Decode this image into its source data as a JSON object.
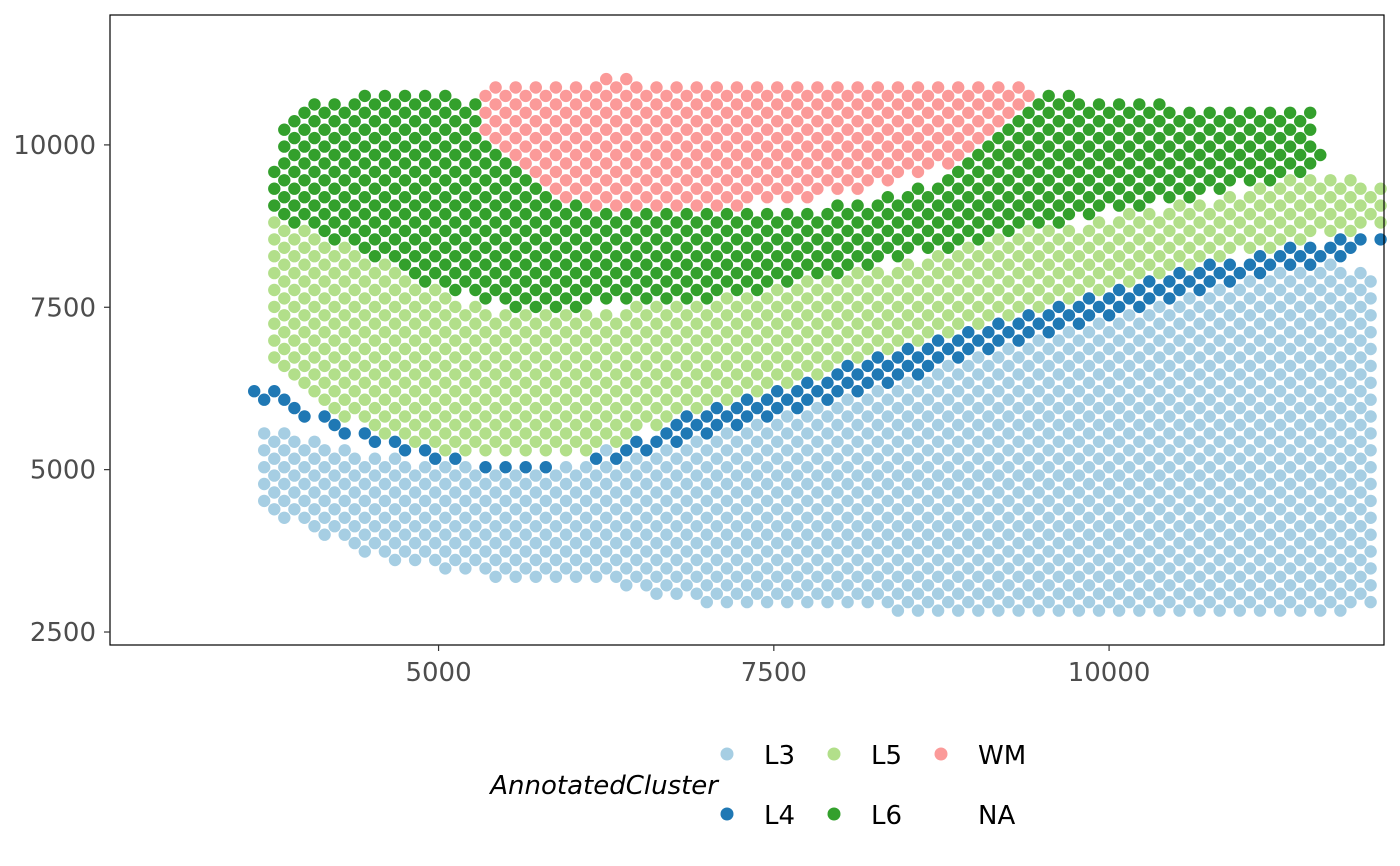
{
  "chart_data": {
    "type": "scatter",
    "title": "",
    "xlabel": "",
    "ylabel": "",
    "xlim": [
      2550,
      12050
    ],
    "ylim": [
      2300,
      12000
    ],
    "x_ticks": [
      5000,
      7500,
      10000
    ],
    "y_ticks": [
      2500,
      5000,
      7500,
      10000
    ],
    "x_tick_labels": [
      "5000",
      "7500",
      "10000"
    ],
    "y_tick_labels": [
      "2500",
      "5000",
      "7500",
      "10000"
    ],
    "grid": false,
    "legend": {
      "title": "AnnotatedCluster",
      "position": "bottom",
      "entries": [
        {
          "label": "L3",
          "color": "#a6cee3"
        },
        {
          "label": "L4",
          "color": "#1f78b4"
        },
        {
          "label": "L5",
          "color": "#b2df8a"
        },
        {
          "label": "L6",
          "color": "#33a02c"
        },
        {
          "label": "WM",
          "color": "#fb9a99"
        },
        {
          "label": "NA",
          "color": null
        }
      ]
    },
    "series": [
      {
        "name": "L3",
        "color": "#a6cee3",
        "region_description": "lower band; top edge rises from (3750,5650) to (11800,8250), bottom edge from (3750,4400) to (12000,2800)",
        "spot_spacing": 150,
        "polygon_x": [
          3650,
          4300,
          4900,
          5500,
          6000,
          6500,
          7000,
          7500,
          8000,
          8500,
          9000,
          9500,
          10000,
          10500,
          11000,
          11500,
          11950,
          12000,
          12000,
          11950,
          11500,
          11000,
          10500,
          10000,
          9500,
          9000,
          8500,
          8000,
          7500,
          7000,
          6500,
          6000,
          5500,
          5000,
          4500,
          4000,
          3650
        ],
        "polygon_y": [
          5700,
          5350,
          5100,
          5000,
          5150,
          5500,
          5850,
          6200,
          6550,
          6850,
          7100,
          7350,
          7650,
          7950,
          8200,
          8250,
          8000,
          7000,
          5300,
          2850,
          2750,
          2750,
          2750,
          2750,
          2800,
          2750,
          2800,
          2900,
          2900,
          2900,
          3100,
          3350,
          3300,
          3450,
          3650,
          4100,
          4450
        ]
      },
      {
        "name": "L4",
        "color": "#1f78b4",
        "region_description": "thin band from (3650,6300) dipping to (5200,5050) then rising to (12050,8700)",
        "spot_spacing": 150,
        "polygon_x": [
          3600,
          3900,
          4300,
          4800,
          5300,
          5800,
          6300,
          6800,
          7300,
          7800,
          8300,
          8800,
          9300,
          9800,
          10300,
          10800,
          11300,
          11800,
          12050,
          12050,
          11800,
          11300,
          10800,
          10300,
          9800,
          9300,
          8800,
          8300,
          7800,
          7300,
          6800,
          6300,
          5800,
          5300,
          4800,
          4300,
          3900,
          3600
        ],
        "polygon_y": [
          6100,
          5850,
          5550,
          5200,
          5000,
          5000,
          5300,
          5800,
          6150,
          6450,
          6750,
          7050,
          7350,
          7650,
          7950,
          8200,
          8400,
          8600,
          8700,
          8550,
          8250,
          8050,
          7800,
          7500,
          7200,
          6900,
          6600,
          6300,
          6000,
          5700,
          5400,
          5150,
          5150,
          5150,
          5350,
          5700,
          6100,
          6400
        ]
      },
      {
        "name": "L5",
        "color": "#b2df8a",
        "region_description": "middle band between L4 and L6",
        "spot_spacing": 150,
        "polygon_x": [
          3750,
          3750,
          4300,
          4800,
          5300,
          5800,
          6300,
          6800,
          7300,
          7800,
          8300,
          8800,
          9300,
          9800,
          10300,
          10800,
          11300,
          11800,
          12050,
          12050,
          11800,
          11300,
          10800,
          10300,
          9800,
          9300,
          8800,
          8300,
          7800,
          7300,
          6800,
          6300,
          5800,
          5300,
          4800,
          4300,
          3750
        ],
        "polygon_y": [
          7100,
          9050,
          8700,
          8150,
          7500,
          7500,
          7500,
          7550,
          7800,
          7950,
          8100,
          8400,
          8650,
          8800,
          9000,
          9200,
          9500,
          9550,
          9300,
          8750,
          8650,
          8450,
          8200,
          7950,
          7650,
          7350,
          7050,
          6750,
          6450,
          6150,
          5800,
          5350,
          5200,
          5200,
          5350,
          5750,
          6700
        ]
      },
      {
        "name": "L6",
        "color": "#33a02c",
        "region_description": "upper band wrapping around WM from the left and right",
        "spot_spacing": 150,
        "polygon_x": [
          3750,
          3800,
          4100,
          4500,
          5000,
          5300,
          5300,
          5700,
          6200,
          6800,
          7300,
          7800,
          8300,
          8800,
          9300,
          9550,
          10000,
          10500,
          11000,
          11500,
          11650,
          11500,
          11000,
          10500,
          10000,
          9500,
          9000,
          8500,
          8000,
          7500,
          7000,
          6500,
          6000,
          5500,
          5000,
          4500,
          4000,
          3750
        ],
        "polygon_y": [
          9300,
          10350,
          10650,
          10800,
          10800,
          10650,
          10100,
          9400,
          9000,
          8950,
          9000,
          9050,
          9200,
          9550,
          10400,
          10800,
          10700,
          10600,
          10550,
          10500,
          9700,
          9600,
          9350,
          9150,
          8950,
          8750,
          8500,
          8250,
          8000,
          7800,
          7600,
          7550,
          7500,
          7500,
          7800,
          8250,
          8700,
          9000
        ]
      },
      {
        "name": "WM",
        "color": "#fb9a99",
        "region_description": "top centre wedge",
        "spot_spacing": 150,
        "polygon_x": [
          5300,
          5800,
          6300,
          6800,
          7300,
          7800,
          8300,
          8800,
          9300,
          9500,
          9300,
          8800,
          8300,
          7800,
          7300,
          6800,
          6300,
          5800,
          5350
        ],
        "polygon_y": [
          10950,
          10900,
          11050,
          10950,
          10950,
          10950,
          10950,
          10950,
          10950,
          10800,
          10450,
          9700,
          9350,
          9200,
          9050,
          8950,
          8950,
          9250,
          10050
        ]
      }
    ]
  }
}
